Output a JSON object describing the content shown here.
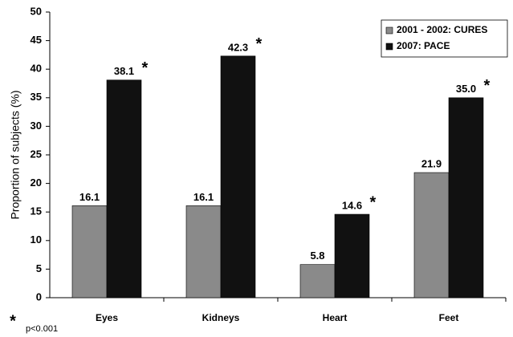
{
  "chart_data": {
    "type": "bar",
    "ylabel": "Proportion of subjects (%)",
    "categories": [
      "Eyes",
      "Kidneys",
      "Heart",
      "Feet"
    ],
    "series": [
      {
        "name": "2001 - 2002: CURES",
        "color": "#8a8a8a",
        "values": [
          16.1,
          16.1,
          5.8,
          21.9
        ]
      },
      {
        "name": "2007: PACE",
        "color": "#111111",
        "values": [
          38.1,
          42.3,
          14.6,
          35.0
        ],
        "value_labels": [
          "38.1",
          "42.3",
          "14.6",
          "35.0"
        ],
        "marker": "*"
      }
    ],
    "ylim": [
      0,
      50
    ],
    "yticks": [
      0,
      5,
      10,
      15,
      20,
      25,
      30,
      35,
      40,
      45,
      50
    ],
    "grid": false,
    "legend": "upper right",
    "footnote": {
      "symbol": "*",
      "text": "p<0.001"
    }
  }
}
